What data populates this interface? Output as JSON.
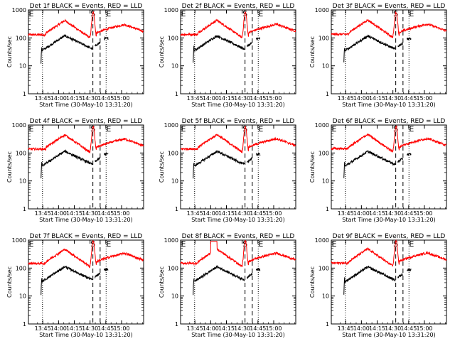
{
  "figure": {
    "background": "#ffffff",
    "events_color": "#000000",
    "lld_color": "#ff0000",
    "note": ""
  },
  "chart_data": [
    {
      "type": "line",
      "title": "Det 1f BLACK = Events, RED = LLD",
      "xlabel": "Start Time (30-May-10 13:31:20)",
      "ylabel": "Counts/sec",
      "yscale": "log",
      "ylim": [
        1,
        1000
      ],
      "xticks": [
        "13:45",
        "14:00",
        "14:15",
        "14:30",
        "14:45",
        "15:00"
      ],
      "yticks": [
        "1",
        "10",
        "100",
        "1000"
      ],
      "markers": {
        "S": "S",
        "E": "E"
      },
      "series": [
        {
          "name": "BLACK = Events",
          "color": "#000000"
        },
        {
          "name": "RED = LLD",
          "color": "#ff0000"
        }
      ]
    },
    {
      "type": "line",
      "title": "Det 2f BLACK = Events, RED = LLD",
      "xlabel": "Start Time (30-May-10 13:31:20)",
      "ylabel": "Counts/sec",
      "yscale": "log",
      "ylim": [
        1,
        1000
      ],
      "xticks": [
        "13:45",
        "14:00",
        "14:15",
        "14:30",
        "14:45",
        "15:00"
      ],
      "yticks": [
        "1",
        "10",
        "100",
        "1000"
      ],
      "markers": {
        "S": "S",
        "E": "E"
      },
      "series": [
        {
          "name": "BLACK = Events",
          "color": "#000000"
        },
        {
          "name": "RED = LLD",
          "color": "#ff0000"
        }
      ]
    },
    {
      "type": "line",
      "title": "Det 3f BLACK = Events, RED = LLD",
      "xlabel": "Start Time (30-May-10 13:31:20)",
      "ylabel": "Counts/sec",
      "yscale": "log",
      "ylim": [
        1,
        1000
      ],
      "xticks": [
        "13:45",
        "14:00",
        "14:15",
        "14:30",
        "14:45",
        "15:00"
      ],
      "yticks": [
        "1",
        "10",
        "100",
        "1000"
      ],
      "markers": {
        "S": "S",
        "E": "E"
      },
      "series": [
        {
          "name": "BLACK = Events",
          "color": "#000000"
        },
        {
          "name": "RED = LLD",
          "color": "#ff0000"
        }
      ]
    },
    {
      "type": "line",
      "title": "Det 4f BLACK = Events, RED = LLD",
      "xlabel": "Start Time (30-May-10 13:31:20)",
      "ylabel": "Counts/sec",
      "yscale": "log",
      "ylim": [
        1,
        1000
      ],
      "xticks": [
        "13:45",
        "14:00",
        "14:15",
        "14:30",
        "14:45",
        "15:00"
      ],
      "yticks": [
        "1",
        "10",
        "100",
        "1000"
      ],
      "markers": {
        "S": "S",
        "E": "E"
      },
      "series": [
        {
          "name": "BLACK = Events",
          "color": "#000000"
        },
        {
          "name": "RED = LLD",
          "color": "#ff0000"
        }
      ]
    },
    {
      "type": "line",
      "title": "Det 5f BLACK = Events, RED = LLD",
      "xlabel": "Start Time (30-May-10 13:31:20)",
      "ylabel": "Counts/sec",
      "yscale": "log",
      "ylim": [
        1,
        1000
      ],
      "xticks": [
        "13:45",
        "14:00",
        "14:15",
        "14:30",
        "14:45",
        "15:00"
      ],
      "yticks": [
        "1",
        "10",
        "100",
        "1000"
      ],
      "markers": {
        "S": "S",
        "E": "E"
      },
      "series": [
        {
          "name": "BLACK = Events",
          "color": "#000000"
        },
        {
          "name": "RED = LLD",
          "color": "#ff0000"
        }
      ]
    },
    {
      "type": "line",
      "title": "Det 6f BLACK = Events, RED = LLD",
      "xlabel": "Start Time (30-May-10 13:31:20)",
      "ylabel": "Counts/sec",
      "yscale": "log",
      "ylim": [
        1,
        1000
      ],
      "xticks": [
        "13:45",
        "14:00",
        "14:15",
        "14:30",
        "14:45",
        "15:00"
      ],
      "yticks": [
        "1",
        "10",
        "100",
        "1000"
      ],
      "markers": {
        "S": "S",
        "E": "E"
      },
      "series": [
        {
          "name": "BLACK = Events",
          "color": "#000000"
        },
        {
          "name": "RED = LLD",
          "color": "#ff0000"
        }
      ]
    },
    {
      "type": "line",
      "title": "Det 7f BLACK = Events, RED = LLD",
      "xlabel": "Start Time (30-May-10 13:31:20)",
      "ylabel": "Counts/sec",
      "yscale": "log",
      "ylim": [
        1,
        1000
      ],
      "xticks": [
        "13:45",
        "14:00",
        "14:15",
        "14:30",
        "14:45",
        "15:00"
      ],
      "yticks": [
        "1",
        "10",
        "100",
        "1000"
      ],
      "markers": {
        "S": "S",
        "E": "E"
      },
      "series": [
        {
          "name": "BLACK = Events",
          "color": "#000000"
        },
        {
          "name": "RED = LLD",
          "color": "#ff0000"
        }
      ]
    },
    {
      "type": "line",
      "title": "Det 8f BLACK = Events, RED = LLD",
      "xlabel": "Start Time (30-May-10 13:31:20)",
      "ylabel": "Counts/sec",
      "yscale": "log",
      "ylim": [
        1,
        1000
      ],
      "xticks": [
        "13:45",
        "14:00",
        "14:15",
        "14:30",
        "14:45",
        "15:00"
      ],
      "yticks": [
        "1",
        "10",
        "100",
        "1000"
      ],
      "markers": {
        "S": "S",
        "E": "E"
      },
      "series": [
        {
          "name": "BLACK = Events",
          "color": "#000000"
        },
        {
          "name": "RED = LLD",
          "color": "#ff0000"
        }
      ]
    },
    {
      "type": "line",
      "title": "Det 9f BLACK = Events, RED = LLD",
      "xlabel": "Start Time (30-May-10 13:31:20)",
      "ylabel": "Counts/sec",
      "yscale": "log",
      "ylim": [
        1,
        1000
      ],
      "xticks": [
        "13:45",
        "14:00",
        "14:15",
        "14:30",
        "14:45",
        "15:00"
      ],
      "yticks": [
        "1",
        "10",
        "100",
        "1000"
      ],
      "markers": {
        "S": "S",
        "E": "E"
      },
      "series": [
        {
          "name": "BLACK = Events",
          "color": "#000000"
        },
        {
          "name": "RED = LLD",
          "color": "#ff0000"
        }
      ]
    }
  ]
}
